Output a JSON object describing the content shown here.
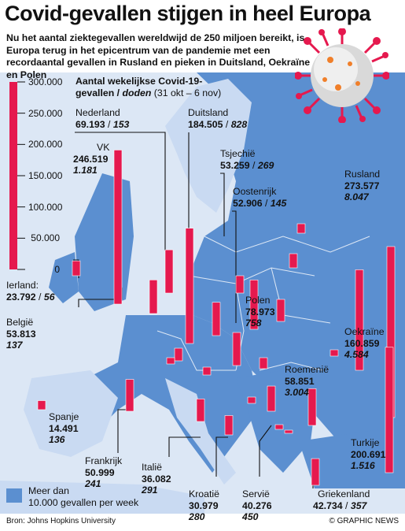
{
  "title": "Covid-gevallen stijgen in heel Europa",
  "subtitle": "Nu het aantal ziektegevallen wereldwijd de 250 miljoen bereikt, is Europa terug in het epicentrum van de pandemie met een recordaantal gevallen in Rusland en pieken in Duitsland, Oekraïne en Polen",
  "colors": {
    "bar": "#e5194e",
    "bar_light": "#f5a6b8",
    "sea": "#ffffff",
    "land_low": "#c9daf2",
    "land_high": "#5b8fd0"
  },
  "chart_data": {
    "type": "bar",
    "title": "Aantal wekelijkse Covid-19-gevallen / doden (31 okt – 6 nov)",
    "axis_title_line1": "Aantal wekelijkse Covid-19-",
    "axis_title_line2_a": "gevallen /",
    "axis_title_line2_b": "doden",
    "axis_title_line2_c": "(31 okt – 6 nov)",
    "ylim": [
      0,
      300000
    ],
    "yticks": [
      "300.000",
      "250.000",
      "200.000",
      "150.000",
      "100.000",
      "50.000",
      "0"
    ],
    "countries": [
      {
        "name": "Nederland",
        "cases": 69193,
        "deaths": 153,
        "cases_label": "69.193",
        "deaths_label": "153"
      },
      {
        "name": "VK",
        "cases": 246519,
        "deaths": 1181,
        "cases_label": "246.519",
        "deaths_label": "1.181"
      },
      {
        "name": "Duitsland",
        "cases": 184505,
        "deaths": 828,
        "cases_label": "184.505",
        "deaths_label": "828"
      },
      {
        "name": "Tsjechië",
        "cases": 53259,
        "deaths": 269,
        "cases_label": "53.259",
        "deaths_label": "269"
      },
      {
        "name": "Oostenrijk",
        "cases": 52906,
        "deaths": 145,
        "cases_label": "52.906",
        "deaths_label": "145"
      },
      {
        "name": "Rusland",
        "cases": 273577,
        "deaths": 8047,
        "cases_label": "273.577",
        "deaths_label": "8.047"
      },
      {
        "name": "Ierland",
        "cases": 23792,
        "deaths": 56,
        "cases_label": "23.792",
        "deaths_label": "56"
      },
      {
        "name": "België",
        "cases": 53813,
        "deaths": 137,
        "cases_label": "53.813",
        "deaths_label": "137"
      },
      {
        "name": "Polen",
        "cases": 78973,
        "deaths": 758,
        "cases_label": "78.973",
        "deaths_label": "758"
      },
      {
        "name": "Oekraïne",
        "cases": 160859,
        "deaths": 4584,
        "cases_label": "160.859",
        "deaths_label": "4.584"
      },
      {
        "name": "Roemenië",
        "cases": 58851,
        "deaths": 3004,
        "cases_label": "58.851",
        "deaths_label": "3.004"
      },
      {
        "name": "Spanje",
        "cases": 14491,
        "deaths": 136,
        "cases_label": "14.491",
        "deaths_label": "136"
      },
      {
        "name": "Turkije",
        "cases": 200691,
        "deaths": 1516,
        "cases_label": "200.691",
        "deaths_label": "1.516"
      },
      {
        "name": "Frankrijk",
        "cases": 50999,
        "deaths": 241,
        "cases_label": "50.999",
        "deaths_label": "241"
      },
      {
        "name": "Italië",
        "cases": 36082,
        "deaths": 291,
        "cases_label": "36.082",
        "deaths_label": "291"
      },
      {
        "name": "Kroatië",
        "cases": 30979,
        "deaths": 280,
        "cases_label": "30.979",
        "deaths_label": "280"
      },
      {
        "name": "Servië",
        "cases": 40276,
        "deaths": 450,
        "cases_label": "40.276",
        "deaths_label": "450"
      },
      {
        "name": "Griekenland",
        "cases": 42734,
        "deaths": 357,
        "cases_label": "42.734",
        "deaths_label": "357"
      }
    ]
  },
  "legend": {
    "text_line1": "Meer dan",
    "text_line2": "10.000 gevallen per week"
  },
  "source": "Bron: Johns Hopkins University",
  "credit": "© GRAPHIC NEWS",
  "watermark": "GRAPHIC NEWS"
}
